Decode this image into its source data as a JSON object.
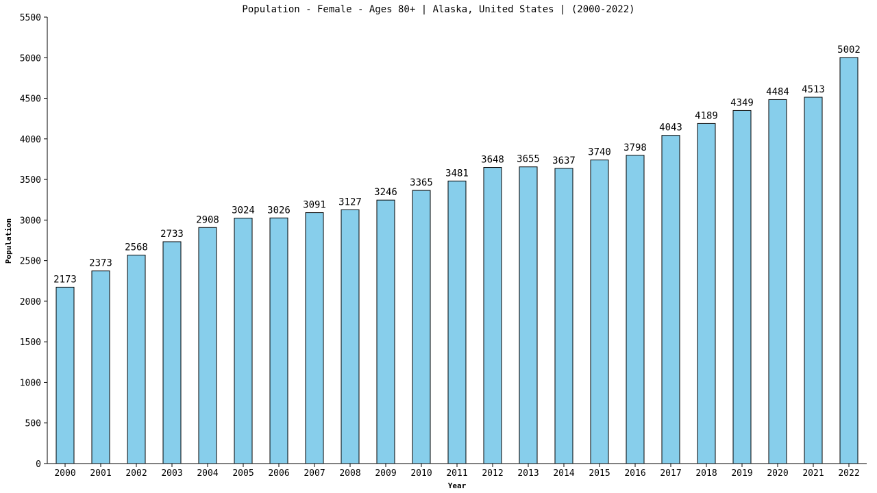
{
  "chart_data": {
    "type": "bar",
    "title": "Population - Female - Ages 80+ | Alaska, United States |  (2000-2022)",
    "xlabel": "Year",
    "ylabel": "Population",
    "categories": [
      "2000",
      "2001",
      "2002",
      "2003",
      "2004",
      "2005",
      "2006",
      "2007",
      "2008",
      "2009",
      "2010",
      "2011",
      "2012",
      "2013",
      "2014",
      "2015",
      "2016",
      "2017",
      "2018",
      "2019",
      "2020",
      "2021",
      "2022"
    ],
    "values": [
      2173,
      2373,
      2568,
      2733,
      2908,
      3024,
      3026,
      3091,
      3127,
      3246,
      3365,
      3481,
      3648,
      3655,
      3637,
      3740,
      3798,
      4043,
      4189,
      4349,
      4484,
      4513,
      5002
    ],
    "ylim": [
      0,
      5500
    ],
    "yticks": [
      0,
      500,
      1000,
      1500,
      2000,
      2500,
      3000,
      3500,
      4000,
      4500,
      5000,
      5500
    ],
    "grid": false,
    "legend": "none",
    "bar_color": "#87ceeb",
    "bar_edge_color": "#000000"
  }
}
